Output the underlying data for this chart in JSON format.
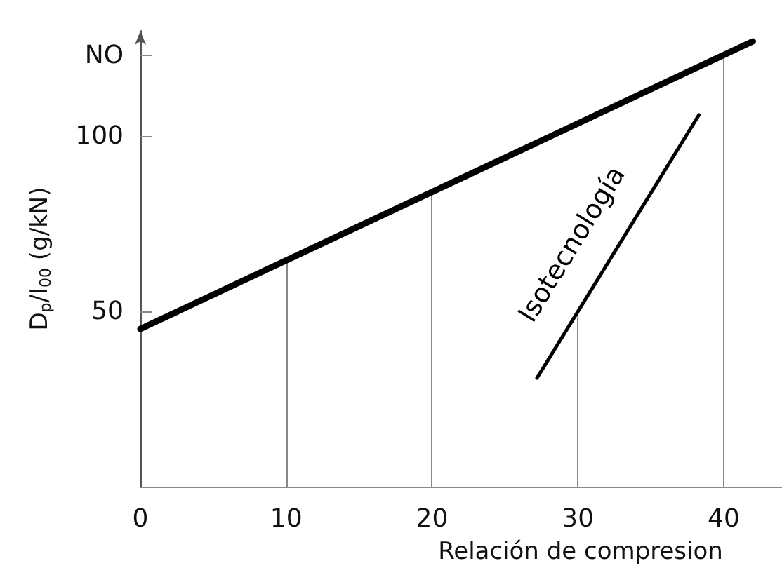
{
  "chart_data": {
    "type": "line",
    "xlabel": "Relación de compresion",
    "ylabel": "D$_{p}$/I$_{00}$ (g/kN)",
    "series": [
      {
        "color": "#000000",
        "x": [
          0,
          42
        ],
        "values": [
          45,
          127
        ]
      },
      {
        "name": "Isotecnología",
        "color": "#000000",
        "x": [
          27.2,
          38.3
        ],
        "values": [
          31,
          106
        ]
      }
    ],
    "xlim": [
      0,
      44
    ],
    "xticks": [
      0,
      10,
      20,
      30,
      40
    ],
    "ylim": [
      0,
      130
    ],
    "yticks": [
      50,
      100,
      {
        "value": 123,
        "label": "NO"
      }
    ],
    "ref_lines": [
      {
        "axis": "x",
        "value": 10,
        "color": "#888888"
      },
      {
        "axis": "x",
        "value": 20,
        "color": "#888888"
      },
      {
        "axis": "x",
        "value": 30,
        "color": "#888888"
      },
      {
        "axis": "x",
        "value": 40,
        "color": "#888888"
      }
    ],
    "legend": false,
    "marker": "none",
    "line_style": "solid"
  }
}
